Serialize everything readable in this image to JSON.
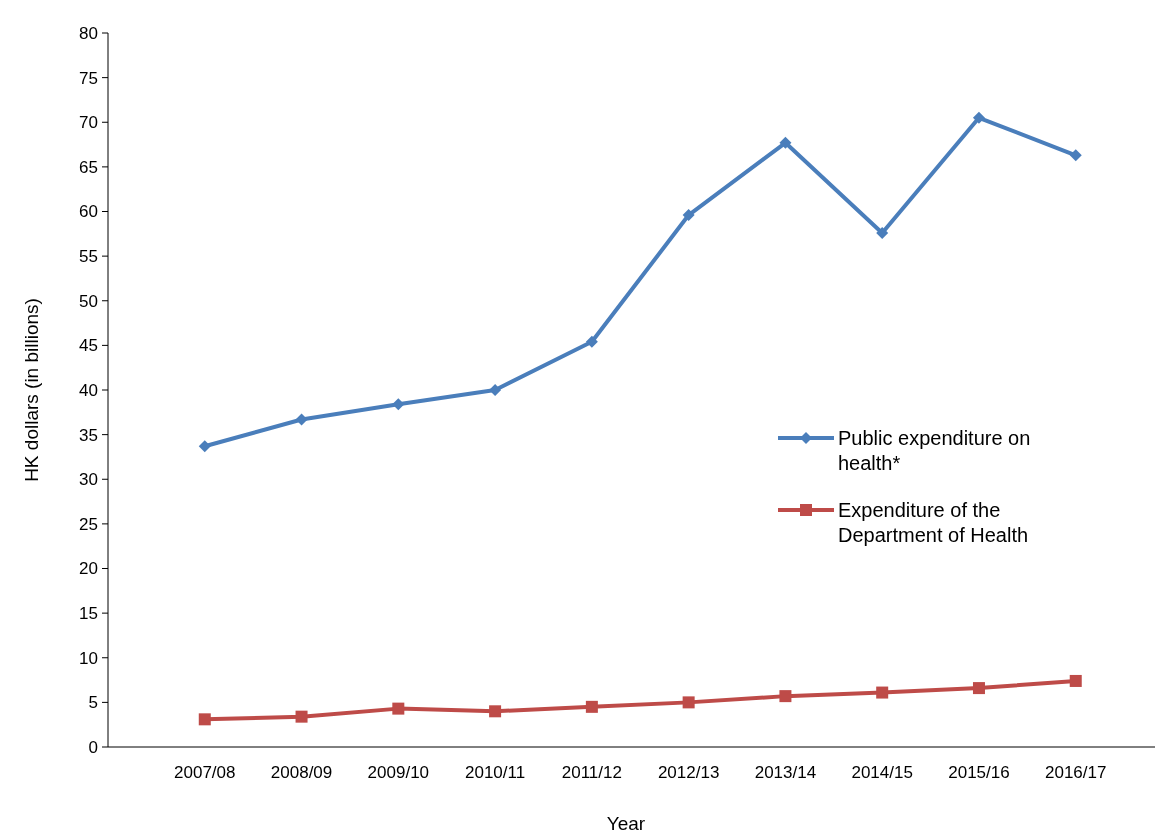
{
  "chart_data": {
    "type": "line",
    "xlabel": "Year",
    "ylabel": "HK dollars (in billions)",
    "categories": [
      "2007/08",
      "2008/09",
      "2009/10",
      "2010/11",
      "2011/12",
      "2012/13",
      "2013/14",
      "2014/15",
      "2015/16",
      "2016/17"
    ],
    "series": [
      {
        "name": "Public expenditure on health*",
        "color": "#4a7ebb",
        "marker": "diamond",
        "values": [
          33.7,
          36.7,
          38.4,
          40.0,
          45.4,
          59.6,
          67.7,
          57.6,
          70.5,
          66.3
        ]
      },
      {
        "name": "Expenditure of the Department of Health",
        "color": "#be4b48",
        "marker": "square",
        "values": [
          3.1,
          3.4,
          4.3,
          4.0,
          4.5,
          5.0,
          5.7,
          6.1,
          6.6,
          7.4
        ]
      }
    ],
    "ylim": [
      0,
      80
    ],
    "yticks": [
      0,
      5,
      10,
      15,
      20,
      25,
      30,
      35,
      40,
      45,
      50,
      55,
      60,
      65,
      70,
      75,
      80
    ],
    "grid": false,
    "legend": "right",
    "line_style": "solid"
  }
}
